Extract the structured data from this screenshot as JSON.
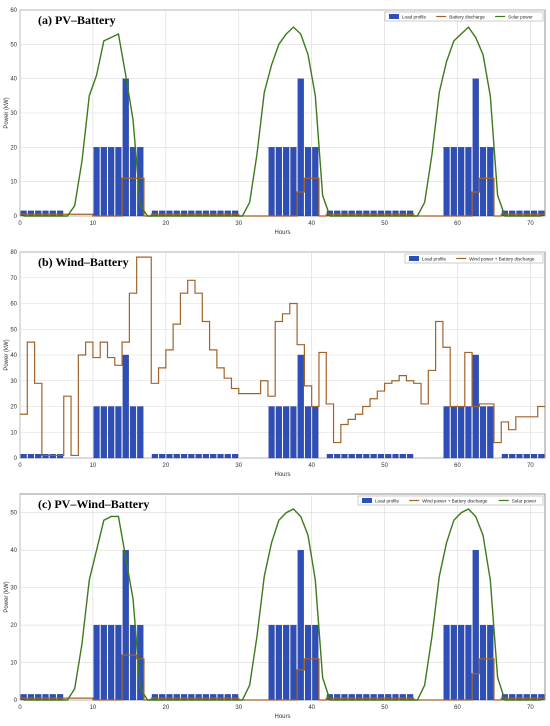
{
  "colors": {
    "load": "#2f4fb8",
    "battery": "#a0642a",
    "solar": "#3d7a1a",
    "wind_battery": "#a0642a",
    "grid": "#d9d9d9",
    "axis_text": "#333333"
  },
  "chart_data": [
    {
      "type": "bar",
      "title": "(a) PV–Battery",
      "xlabel": "Hours",
      "ylabel": "Power (kW)",
      "xlim": [
        0,
        72
      ],
      "ylim": [
        0,
        60
      ],
      "xticks": [
        0,
        10,
        20,
        30,
        40,
        50,
        60,
        70
      ],
      "yticks": [
        0,
        10,
        20,
        30,
        40,
        50,
        60
      ],
      "grid": true,
      "legend_position": "top-right",
      "x": [
        1,
        2,
        3,
        4,
        5,
        6,
        7,
        8,
        9,
        10,
        11,
        12,
        13,
        14,
        15,
        16,
        17,
        18,
        19,
        20,
        21,
        22,
        23,
        24,
        25,
        26,
        27,
        28,
        29,
        30,
        31,
        32,
        33,
        34,
        35,
        36,
        37,
        38,
        39,
        40,
        41,
        42,
        43,
        44,
        45,
        46,
        47,
        48,
        49,
        50,
        51,
        52,
        53,
        54,
        55,
        56,
        57,
        58,
        59,
        60,
        61,
        62,
        63,
        64,
        65,
        66,
        67,
        68,
        69,
        70,
        71,
        72
      ],
      "series": [
        {
          "name": "Load profile",
          "kind": "bar",
          "color_key": "load",
          "values": [
            1.5,
            1.5,
            1.5,
            1.5,
            1.5,
            1.5,
            0,
            0,
            0,
            0,
            20,
            20,
            20,
            20,
            40,
            20,
            20,
            0,
            1.5,
            1.5,
            1.5,
            1.5,
            1.5,
            1.5,
            1.5,
            1.5,
            1.5,
            1.5,
            1.5,
            1.5,
            0,
            0,
            0,
            0,
            20,
            20,
            20,
            20,
            40,
            20,
            20,
            0,
            1.5,
            1.5,
            1.5,
            1.5,
            1.5,
            1.5,
            1.5,
            1.5,
            1.5,
            1.5,
            1.5,
            1.5,
            0,
            0,
            0,
            0,
            20,
            20,
            20,
            20,
            40,
            20,
            20,
            0,
            1.5,
            1.5,
            1.5,
            1.5,
            1.5,
            1.5
          ]
        },
        {
          "name": "Battery discharge",
          "kind": "step",
          "color_key": "battery",
          "values": [
            0.5,
            0.5,
            0.5,
            0.5,
            0.5,
            0.5,
            0.5,
            0.5,
            0.5,
            0.5,
            0,
            0,
            0,
            0,
            11,
            11,
            11,
            0,
            0.5,
            0.5,
            0.5,
            0.5,
            0.5,
            0.5,
            0.5,
            0.5,
            0.5,
            0.5,
            0.5,
            0.5,
            0,
            0,
            0,
            0,
            0,
            0,
            0,
            0,
            7,
            11,
            11,
            0,
            0.5,
            0.5,
            0.5,
            0.5,
            0.5,
            0.5,
            0.5,
            0.5,
            0.5,
            0.5,
            0.5,
            0.5,
            0,
            0,
            0,
            0,
            0,
            0,
            0,
            0,
            7,
            11,
            11,
            0,
            0.5,
            0.5,
            0.5,
            0.5,
            0.5,
            0.5
          ]
        },
        {
          "name": "Solar power",
          "kind": "line",
          "color_key": "solar",
          "values": [
            0,
            0,
            0,
            0,
            0,
            0,
            0,
            3,
            16,
            35,
            41,
            51,
            52,
            53,
            41,
            28,
            3,
            0,
            0,
            0,
            0,
            0,
            0,
            0,
            0,
            0,
            0,
            0,
            0,
            0,
            0,
            4,
            18,
            36,
            44,
            50,
            53,
            55,
            53,
            47,
            35,
            6,
            0,
            0,
            0,
            0,
            0,
            0,
            0,
            0,
            0,
            0,
            0,
            0,
            0,
            4,
            18,
            36,
            45,
            51,
            53,
            55,
            52,
            47,
            35,
            6,
            0,
            0,
            0,
            0,
            0,
            0
          ]
        }
      ]
    },
    {
      "type": "bar",
      "title": "(b) Wind–Battery",
      "xlabel": "Hours",
      "ylabel": "Power (kW)",
      "xlim": [
        0,
        72
      ],
      "ylim": [
        0,
        80
      ],
      "xticks": [
        0,
        10,
        20,
        30,
        40,
        50,
        60,
        70
      ],
      "yticks": [
        0,
        10,
        20,
        30,
        40,
        50,
        60,
        70,
        80
      ],
      "grid": true,
      "legend_position": "top-right",
      "x": [
        1,
        2,
        3,
        4,
        5,
        6,
        7,
        8,
        9,
        10,
        11,
        12,
        13,
        14,
        15,
        16,
        17,
        18,
        19,
        20,
        21,
        22,
        23,
        24,
        25,
        26,
        27,
        28,
        29,
        30,
        31,
        32,
        33,
        34,
        35,
        36,
        37,
        38,
        39,
        40,
        41,
        42,
        43,
        44,
        45,
        46,
        47,
        48,
        49,
        50,
        51,
        52,
        53,
        54,
        55,
        56,
        57,
        58,
        59,
        60,
        61,
        62,
        63,
        64,
        65,
        66,
        67,
        68,
        69,
        70,
        71,
        72
      ],
      "series": [
        {
          "name": "Load profile",
          "kind": "bar",
          "color_key": "load",
          "values": [
            1.5,
            1.5,
            1.5,
            1.5,
            1.5,
            1.5,
            0,
            0,
            0,
            0,
            20,
            20,
            20,
            20,
            40,
            20,
            20,
            0,
            1.5,
            1.5,
            1.5,
            1.5,
            1.5,
            1.5,
            1.5,
            1.5,
            1.5,
            1.5,
            1.5,
            1.5,
            0,
            0,
            0,
            0,
            20,
            20,
            20,
            20,
            40,
            20,
            20,
            0,
            1.5,
            1.5,
            1.5,
            1.5,
            1.5,
            1.5,
            1.5,
            1.5,
            1.5,
            1.5,
            1.5,
            1.5,
            0,
            0,
            0,
            0,
            20,
            20,
            20,
            20,
            40,
            20,
            20,
            0,
            1.5,
            1.5,
            1.5,
            1.5,
            1.5,
            1.5
          ]
        },
        {
          "name": "Wind power + Battery discharge",
          "kind": "step",
          "color_key": "wind_battery",
          "values": [
            17,
            45,
            29,
            1,
            1,
            1,
            24,
            1,
            40,
            45,
            39,
            45,
            39,
            36,
            45,
            64,
            78,
            78,
            29,
            35,
            42,
            52,
            64,
            69,
            64,
            53,
            42,
            35,
            31,
            27,
            25,
            25,
            25,
            30,
            24,
            53,
            56,
            60,
            44,
            28,
            20,
            41,
            21,
            6,
            13,
            15,
            17,
            20,
            23,
            26,
            29,
            30,
            32,
            30,
            29,
            21,
            34,
            53,
            43,
            20,
            20,
            41,
            20,
            21,
            21,
            6,
            14,
            11,
            16,
            16,
            16,
            20
          ]
        }
      ]
    },
    {
      "type": "bar",
      "title": "(c) PV–Wind–Battery",
      "xlabel": "Hours",
      "ylabel": "Power (kW)",
      "xlim": [
        0,
        72
      ],
      "ylim": [
        0,
        55
      ],
      "xticks": [
        0,
        10,
        20,
        30,
        40,
        50,
        60,
        70
      ],
      "yticks": [
        0,
        10,
        20,
        30,
        40,
        50
      ],
      "grid": true,
      "legend_position": "top-right",
      "x": [
        1,
        2,
        3,
        4,
        5,
        6,
        7,
        8,
        9,
        10,
        11,
        12,
        13,
        14,
        15,
        16,
        17,
        18,
        19,
        20,
        21,
        22,
        23,
        24,
        25,
        26,
        27,
        28,
        29,
        30,
        31,
        32,
        33,
        34,
        35,
        36,
        37,
        38,
        39,
        40,
        41,
        42,
        43,
        44,
        45,
        46,
        47,
        48,
        49,
        50,
        51,
        52,
        53,
        54,
        55,
        56,
        57,
        58,
        59,
        60,
        61,
        62,
        63,
        64,
        65,
        66,
        67,
        68,
        69,
        70,
        71,
        72
      ],
      "series": [
        {
          "name": "Load profile",
          "kind": "bar",
          "color_key": "load",
          "values": [
            1.5,
            1.5,
            1.5,
            1.5,
            1.5,
            1.5,
            0,
            0,
            0,
            0,
            20,
            20,
            20,
            20,
            40,
            20,
            20,
            0,
            1.5,
            1.5,
            1.5,
            1.5,
            1.5,
            1.5,
            1.5,
            1.5,
            1.5,
            1.5,
            1.5,
            1.5,
            0,
            0,
            0,
            0,
            20,
            20,
            20,
            20,
            40,
            20,
            20,
            0,
            1.5,
            1.5,
            1.5,
            1.5,
            1.5,
            1.5,
            1.5,
            1.5,
            1.5,
            1.5,
            1.5,
            1.5,
            0,
            0,
            0,
            0,
            20,
            20,
            20,
            20,
            40,
            20,
            20,
            0,
            1.5,
            1.5,
            1.5,
            1.5,
            1.5,
            1.5
          ]
        },
        {
          "name": "Wind power + Battery discharge",
          "kind": "step",
          "color_key": "wind_battery",
          "values": [
            0.5,
            0.5,
            0.5,
            0.5,
            0.5,
            0.5,
            0.5,
            0.5,
            0.5,
            0.5,
            0,
            0,
            0,
            0,
            12,
            12,
            11,
            0,
            0.5,
            0.5,
            0.5,
            0.5,
            0.5,
            0.5,
            0.5,
            0.5,
            0.5,
            0.5,
            0.5,
            0.5,
            0,
            0,
            0,
            0,
            0,
            0,
            0,
            0,
            8,
            11,
            11,
            0,
            0.5,
            0.5,
            0.5,
            0.5,
            0.5,
            0.5,
            0.5,
            0.5,
            0.5,
            0.5,
            0.5,
            0.5,
            0,
            0,
            0,
            0,
            0,
            0,
            0,
            0,
            7,
            11,
            11,
            0,
            0.5,
            0.5,
            0.5,
            0.5,
            0.5,
            0.5
          ]
        },
        {
          "name": "Solar power",
          "kind": "line",
          "color_key": "solar",
          "values": [
            0,
            0,
            0,
            0,
            0,
            0,
            0,
            3,
            15,
            32,
            40,
            48,
            49,
            49,
            38,
            27,
            3,
            0,
            0,
            0,
            0,
            0,
            0,
            0,
            0,
            0,
            0,
            0,
            0,
            0,
            0,
            4,
            17,
            33,
            42,
            48,
            50,
            51,
            49,
            44,
            32,
            6,
            0,
            0,
            0,
            0,
            0,
            0,
            0,
            0,
            0,
            0,
            0,
            0,
            0,
            4,
            17,
            33,
            42,
            48,
            50,
            51,
            49,
            44,
            32,
            6,
            0,
            0,
            0,
            0,
            0,
            0
          ]
        }
      ]
    }
  ]
}
